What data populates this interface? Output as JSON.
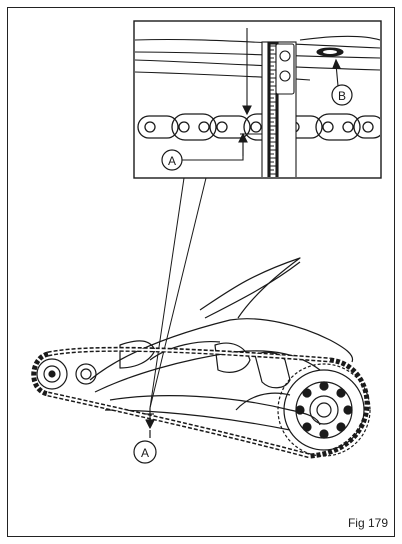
{
  "figure": {
    "caption": "Fig 179",
    "callouts": {
      "detail_a": "A",
      "detail_b": "B",
      "main_a": "A"
    }
  },
  "colors": {
    "line": "#1a1a1a",
    "fill_light": "#ffffff"
  }
}
